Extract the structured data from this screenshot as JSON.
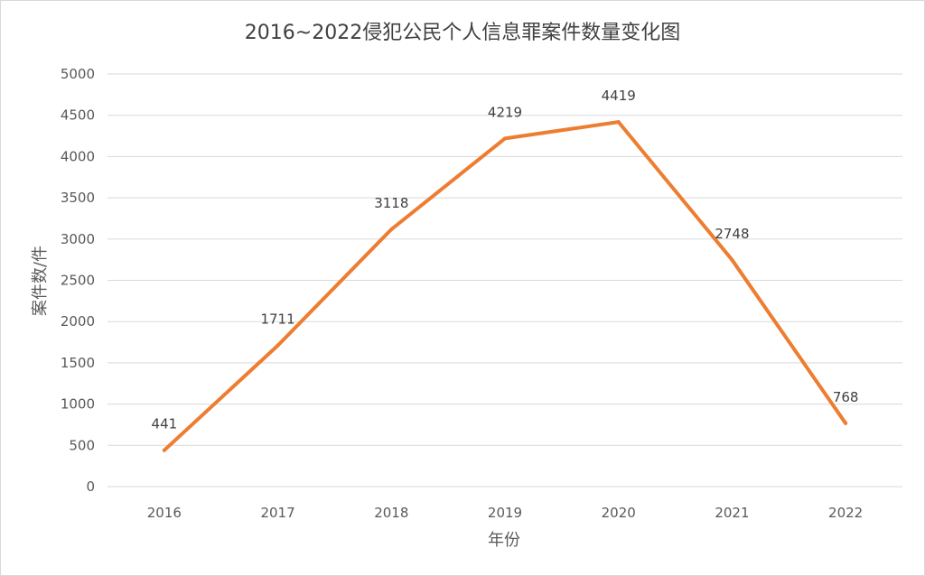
{
  "chart_data": {
    "type": "line",
    "title": "2016~2022侵犯公民个人信息罪案件数量变化图",
    "xlabel": "年份",
    "ylabel": "案件数/件",
    "categories": [
      "2016",
      "2017",
      "2018",
      "2019",
      "2020",
      "2021",
      "2022"
    ],
    "series": [
      {
        "values": [
          441,
          1711,
          3118,
          4219,
          4419,
          2748,
          768
        ],
        "color": "#ED7D31"
      }
    ],
    "data_labels": [
      "441",
      "1711",
      "3118",
      "4219",
      "4419",
      "2748",
      "768"
    ],
    "ylim": [
      0,
      5000
    ],
    "yticks": [
      "0",
      "500",
      "1000",
      "1500",
      "2000",
      "2500",
      "3000",
      "3500",
      "4000",
      "4500",
      "5000"
    ],
    "grid": true,
    "legend": "none"
  }
}
